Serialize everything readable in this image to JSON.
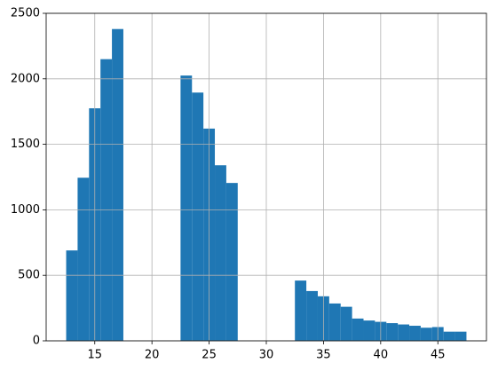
{
  "chart_data": {
    "type": "histogram",
    "bins": [
      12.5,
      13.5,
      14.5,
      15.5,
      16.5,
      17.5,
      18.5,
      19.5,
      20.5,
      21.5,
      22.5,
      23.5,
      24.5,
      25.5,
      26.5,
      27.5,
      28.5,
      29.5,
      30.5,
      31.5,
      32.5,
      33.5,
      34.5,
      35.5,
      36.5,
      37.5,
      38.5,
      39.5,
      40.5,
      41.5,
      42.5,
      43.5,
      44.5,
      45.5,
      46.5,
      47.5
    ],
    "counts": [
      690,
      1245,
      1775,
      2150,
      2380,
      0,
      0,
      0,
      0,
      0,
      2025,
      1895,
      1620,
      1340,
      1205,
      0,
      0,
      0,
      0,
      0,
      460,
      380,
      340,
      285,
      260,
      170,
      155,
      145,
      135,
      125,
      115,
      100,
      105,
      70,
      70
    ],
    "color": "#1f77b4",
    "xlim": [
      10.75,
      49.25
    ],
    "xticks": [
      15,
      20,
      25,
      30,
      35,
      40,
      45
    ],
    "ylim": [
      0,
      2500
    ],
    "yticks": [
      0,
      500,
      1000,
      1500,
      2000,
      2500
    ],
    "grid": true
  }
}
